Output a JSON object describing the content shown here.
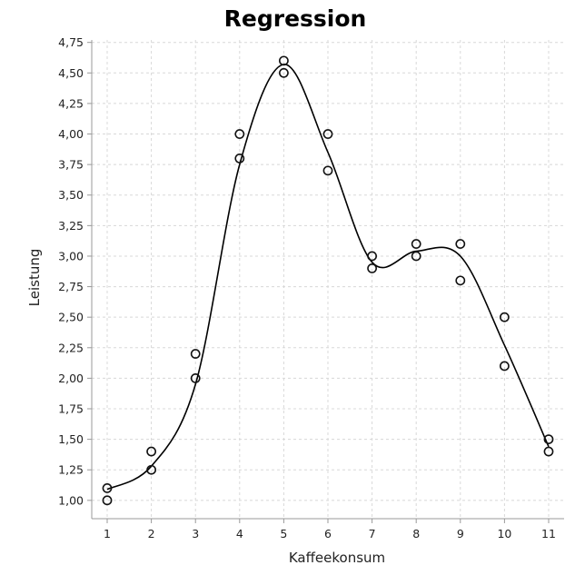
{
  "chart_data": {
    "type": "scatter",
    "title": "Regression",
    "xlabel": "Kaffeekonsum",
    "ylabel": "Leistung",
    "xlim": [
      0.65,
      11.35
    ],
    "ylim": [
      0.85,
      4.77
    ],
    "x_ticks": [
      "1",
      "2",
      "3",
      "4",
      "5",
      "6",
      "7",
      "8",
      "9",
      "10",
      "11"
    ],
    "y_ticks": [
      "1,00",
      "1,25",
      "1,50",
      "1,75",
      "2,00",
      "2,25",
      "2,50",
      "2,75",
      "3,00",
      "3,25",
      "3,50",
      "3,75",
      "4,00",
      "4,25",
      "4,50",
      "4,75"
    ],
    "grid": true,
    "series": [
      {
        "kind": "scatter",
        "marker": "open-circle",
        "x": [
          1,
          1,
          2,
          2,
          3,
          3,
          4,
          4,
          5,
          5,
          6,
          6,
          7,
          7,
          8,
          8,
          9,
          9,
          10,
          10,
          11,
          11
        ],
        "y": [
          1.1,
          1.0,
          1.4,
          1.25,
          2.2,
          2.0,
          4.0,
          3.8,
          4.6,
          4.5,
          4.0,
          3.7,
          3.0,
          2.9,
          3.1,
          3.0,
          3.1,
          2.8,
          2.5,
          2.1,
          1.5,
          1.4
        ]
      },
      {
        "kind": "line",
        "x": [
          1,
          2,
          3,
          4,
          5,
          6,
          7,
          8,
          9,
          10,
          11
        ],
        "y": [
          1.09,
          1.28,
          1.95,
          3.75,
          4.57,
          3.85,
          2.95,
          3.04,
          3.0,
          2.27,
          1.44
        ]
      }
    ],
    "colors": {
      "points": "#111111",
      "curve": "#000000",
      "grid": "#d8d8d8"
    }
  }
}
